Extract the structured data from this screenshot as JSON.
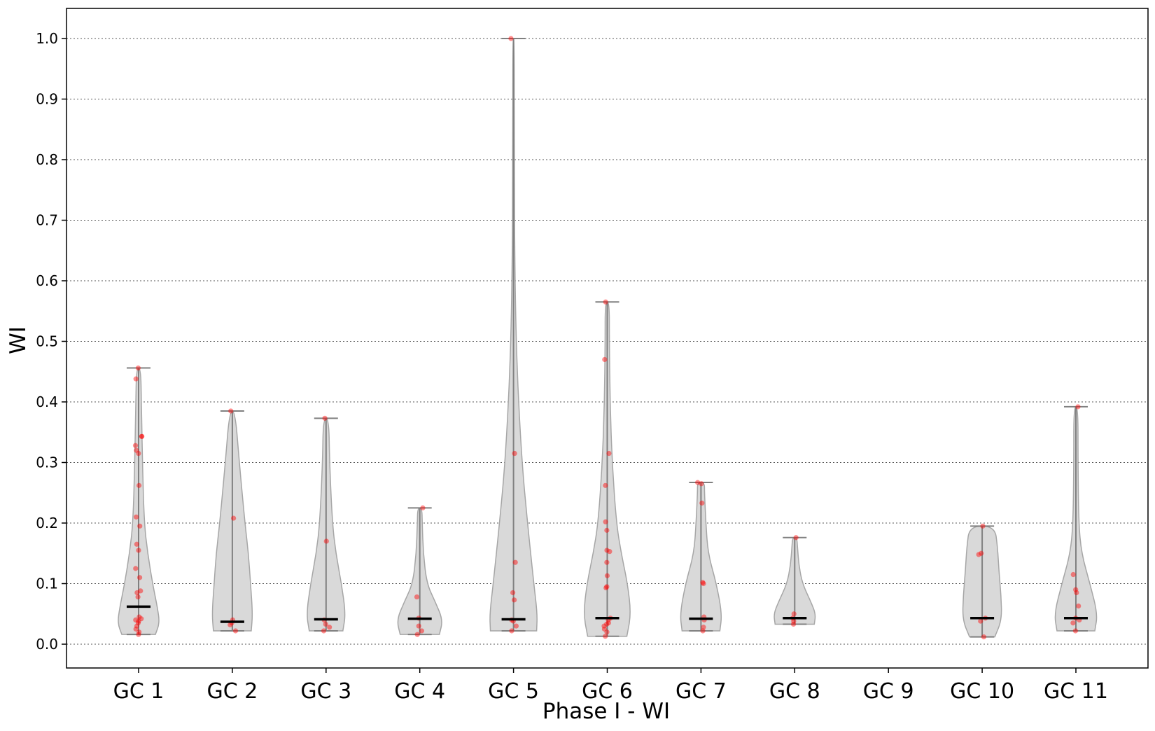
{
  "chart_data": {
    "type": "violin",
    "xlabel": "Phase I - WI",
    "ylabel": "WI",
    "ylim": [
      -0.04,
      1.05
    ],
    "yticks": [
      0.0,
      0.1,
      0.2,
      0.3,
      0.4,
      0.5,
      0.6,
      0.7,
      0.8,
      0.9,
      1.0
    ],
    "ytick_labels": [
      "0.0",
      "0.1",
      "0.2",
      "0.3",
      "0.4",
      "0.5",
      "0.6",
      "0.7",
      "0.8",
      "0.9",
      "1.0"
    ],
    "grid": "horizontal dotted",
    "colors": {
      "violin_fill": "#d9d9d9",
      "violin_edge": "#a6a6a6",
      "whisker": "#808080",
      "points": "#ff0000",
      "median": "#000000",
      "grid": "#555555"
    },
    "categories": [
      {
        "label": "GC 1",
        "min": 0.016,
        "max": 0.456,
        "median": 0.062,
        "points": [
          0.016,
          0.02,
          0.025,
          0.03,
          0.035,
          0.038,
          0.04,
          0.042,
          0.045,
          0.078,
          0.085,
          0.088,
          0.11,
          0.125,
          0.155,
          0.165,
          0.195,
          0.21,
          0.262,
          0.315,
          0.32,
          0.328,
          0.343,
          0.343,
          0.438,
          0.456
        ],
        "shape": [
          [
            0.016,
            24
          ],
          [
            0.035,
            30
          ],
          [
            0.06,
            27
          ],
          [
            0.1,
            20
          ],
          [
            0.15,
            13
          ],
          [
            0.2,
            8
          ],
          [
            0.3,
            5.5
          ],
          [
            0.4,
            4
          ],
          [
            0.456,
            3
          ]
        ]
      },
      {
        "label": "GC 2",
        "min": 0.022,
        "max": 0.385,
        "median": 0.037,
        "points": [
          0.022,
          0.032,
          0.035,
          0.04,
          0.208,
          0.385
        ],
        "shape": [
          [
            0.022,
            27
          ],
          [
            0.05,
            29
          ],
          [
            0.1,
            26
          ],
          [
            0.15,
            23
          ],
          [
            0.2,
            18
          ],
          [
            0.3,
            10
          ],
          [
            0.385,
            4
          ]
        ]
      },
      {
        "label": "GC 3",
        "min": 0.022,
        "max": 0.373,
        "median": 0.041,
        "points": [
          0.022,
          0.028,
          0.033,
          0.04,
          0.17,
          0.373
        ],
        "shape": [
          [
            0.022,
            24
          ],
          [
            0.05,
            28
          ],
          [
            0.1,
            22
          ],
          [
            0.15,
            14
          ],
          [
            0.2,
            9
          ],
          [
            0.3,
            5
          ],
          [
            0.373,
            4
          ]
        ]
      },
      {
        "label": "GC 4",
        "min": 0.016,
        "max": 0.225,
        "median": 0.042,
        "points": [
          0.016,
          0.022,
          0.03,
          0.043,
          0.078,
          0.225
        ],
        "shape": [
          [
            0.016,
            28
          ],
          [
            0.04,
            33
          ],
          [
            0.07,
            22
          ],
          [
            0.1,
            10
          ],
          [
            0.15,
            5
          ],
          [
            0.2,
            3.5
          ],
          [
            0.225,
            3
          ]
        ]
      },
      {
        "label": "GC 5",
        "min": 0.022,
        "max": 1.0,
        "median": 0.041,
        "points": [
          0.022,
          0.03,
          0.038,
          0.04,
          0.073,
          0.085,
          0.135,
          0.315,
          1.0
        ],
        "shape": [
          [
            0.022,
            33
          ],
          [
            0.05,
            34
          ],
          [
            0.1,
            29
          ],
          [
            0.2,
            20
          ],
          [
            0.3,
            12
          ],
          [
            0.45,
            5
          ],
          [
            0.6,
            2
          ],
          [
            0.8,
            1
          ],
          [
            1.0,
            1
          ]
        ]
      },
      {
        "label": "GC 6",
        "min": 0.013,
        "max": 0.565,
        "median": 0.043,
        "points": [
          0.013,
          0.02,
          0.025,
          0.03,
          0.033,
          0.035,
          0.04,
          0.043,
          0.093,
          0.095,
          0.113,
          0.135,
          0.153,
          0.155,
          0.188,
          0.202,
          0.262,
          0.315,
          0.47,
          0.565
        ],
        "shape": [
          [
            0.013,
            28
          ],
          [
            0.05,
            34
          ],
          [
            0.1,
            29
          ],
          [
            0.15,
            20
          ],
          [
            0.2,
            13
          ],
          [
            0.3,
            7
          ],
          [
            0.4,
            4
          ],
          [
            0.5,
            3
          ],
          [
            0.565,
            3
          ]
        ]
      },
      {
        "label": "GC 7",
        "min": 0.022,
        "max": 0.267,
        "median": 0.042,
        "points": [
          0.022,
          0.028,
          0.04,
          0.045,
          0.1,
          0.102,
          0.233,
          0.265,
          0.267
        ],
        "shape": [
          [
            0.022,
            27
          ],
          [
            0.05,
            30
          ],
          [
            0.1,
            22
          ],
          [
            0.15,
            10
          ],
          [
            0.2,
            7
          ],
          [
            0.25,
            5
          ],
          [
            0.267,
            5
          ]
        ]
      },
      {
        "label": "GC 8",
        "min": 0.033,
        "max": 0.176,
        "median": 0.043,
        "points": [
          0.033,
          0.038,
          0.043,
          0.05,
          0.176
        ],
        "shape": [
          [
            0.033,
            28
          ],
          [
            0.05,
            30
          ],
          [
            0.07,
            23
          ],
          [
            0.1,
            11
          ],
          [
            0.13,
            6
          ],
          [
            0.16,
            4
          ],
          [
            0.176,
            3
          ]
        ]
      },
      {
        "label": "GC 9",
        "min": null,
        "max": null,
        "median": null,
        "points": [],
        "shape": []
      },
      {
        "label": "GC 10",
        "min": 0.012,
        "max": 0.195,
        "median": 0.043,
        "points": [
          0.012,
          0.038,
          0.043,
          0.148,
          0.15,
          0.195
        ],
        "shape": [
          [
            0.012,
            18
          ],
          [
            0.04,
            28
          ],
          [
            0.08,
            27
          ],
          [
            0.12,
            24
          ],
          [
            0.16,
            22
          ],
          [
            0.195,
            18
          ]
        ]
      },
      {
        "label": "GC 11",
        "min": 0.022,
        "max": 0.392,
        "median": 0.043,
        "points": [
          0.022,
          0.035,
          0.04,
          0.043,
          0.063,
          0.085,
          0.09,
          0.115,
          0.392
        ],
        "shape": [
          [
            0.022,
            27
          ],
          [
            0.05,
            31
          ],
          [
            0.1,
            20
          ],
          [
            0.15,
            8
          ],
          [
            0.2,
            4
          ],
          [
            0.3,
            3
          ],
          [
            0.392,
            3
          ]
        ]
      }
    ]
  }
}
